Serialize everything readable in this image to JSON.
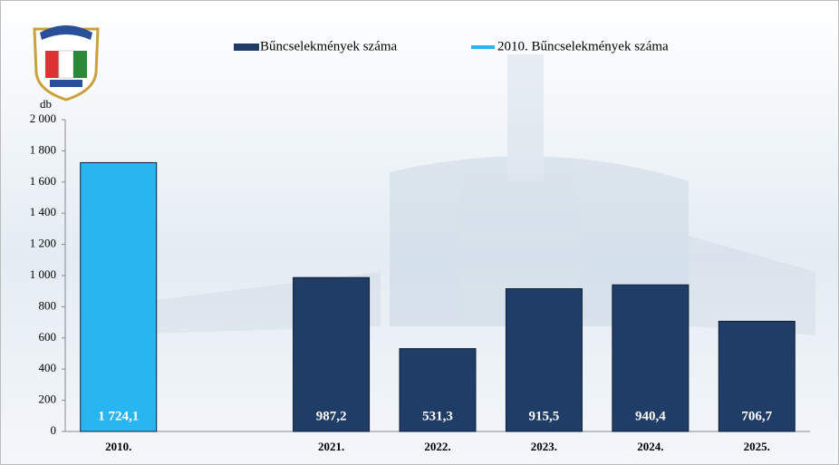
{
  "chart_data": {
    "type": "bar",
    "y_label": "db",
    "categories": [
      "2010.",
      null,
      "2021.",
      "2022.",
      "2023.",
      "2024.",
      "2025."
    ],
    "series": [
      {
        "name": "Bűncselekmények száma",
        "color": "#1f3d66",
        "values": [
          null,
          null,
          987.2,
          531.3,
          915.5,
          940.4,
          706.7
        ],
        "value_labels": [
          null,
          null,
          "987,2",
          "531,3",
          "915,5",
          "940,4",
          "706,7"
        ]
      },
      {
        "name": "2010. Bűncselekmények száma",
        "color": "#29b6f0",
        "values": [
          1724.1,
          null,
          null,
          null,
          null,
          null,
          null
        ],
        "value_labels": [
          "1 724,1",
          null,
          null,
          null,
          null,
          null,
          null
        ]
      }
    ],
    "ylim": [
      0,
      2000
    ],
    "yticks": [
      0,
      200,
      400,
      600,
      800,
      {
        "value": 1000,
        "label": "1 000"
      },
      {
        "value": 1200,
        "label": "1 200"
      },
      {
        "value": 1400,
        "label": "1 400"
      },
      {
        "value": 1600,
        "label": "1 600"
      },
      {
        "value": 1800,
        "label": "1 800"
      },
      {
        "value": 2000,
        "label": "2 000"
      }
    ]
  }
}
